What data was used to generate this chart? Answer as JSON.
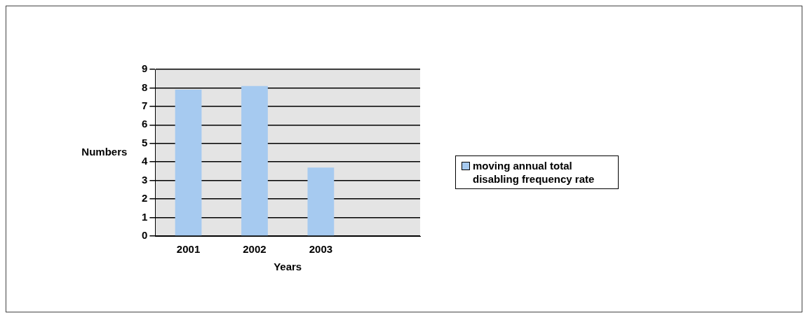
{
  "chart_data": {
    "type": "bar",
    "xlabel": "Years",
    "ylabel": "Numbers",
    "categories": [
      "2001",
      "2002",
      "2003",
      null
    ],
    "series": [
      {
        "name": "moving annual total disabling frequency rate",
        "color": "#a6caf0",
        "values": [
          7.9,
          8.1,
          3.7,
          null
        ]
      }
    ],
    "ylim": [
      0,
      9
    ],
    "yticks": [
      0,
      1,
      2,
      3,
      4,
      5,
      6,
      7,
      8,
      9
    ],
    "grid": "y",
    "legend": "right"
  }
}
